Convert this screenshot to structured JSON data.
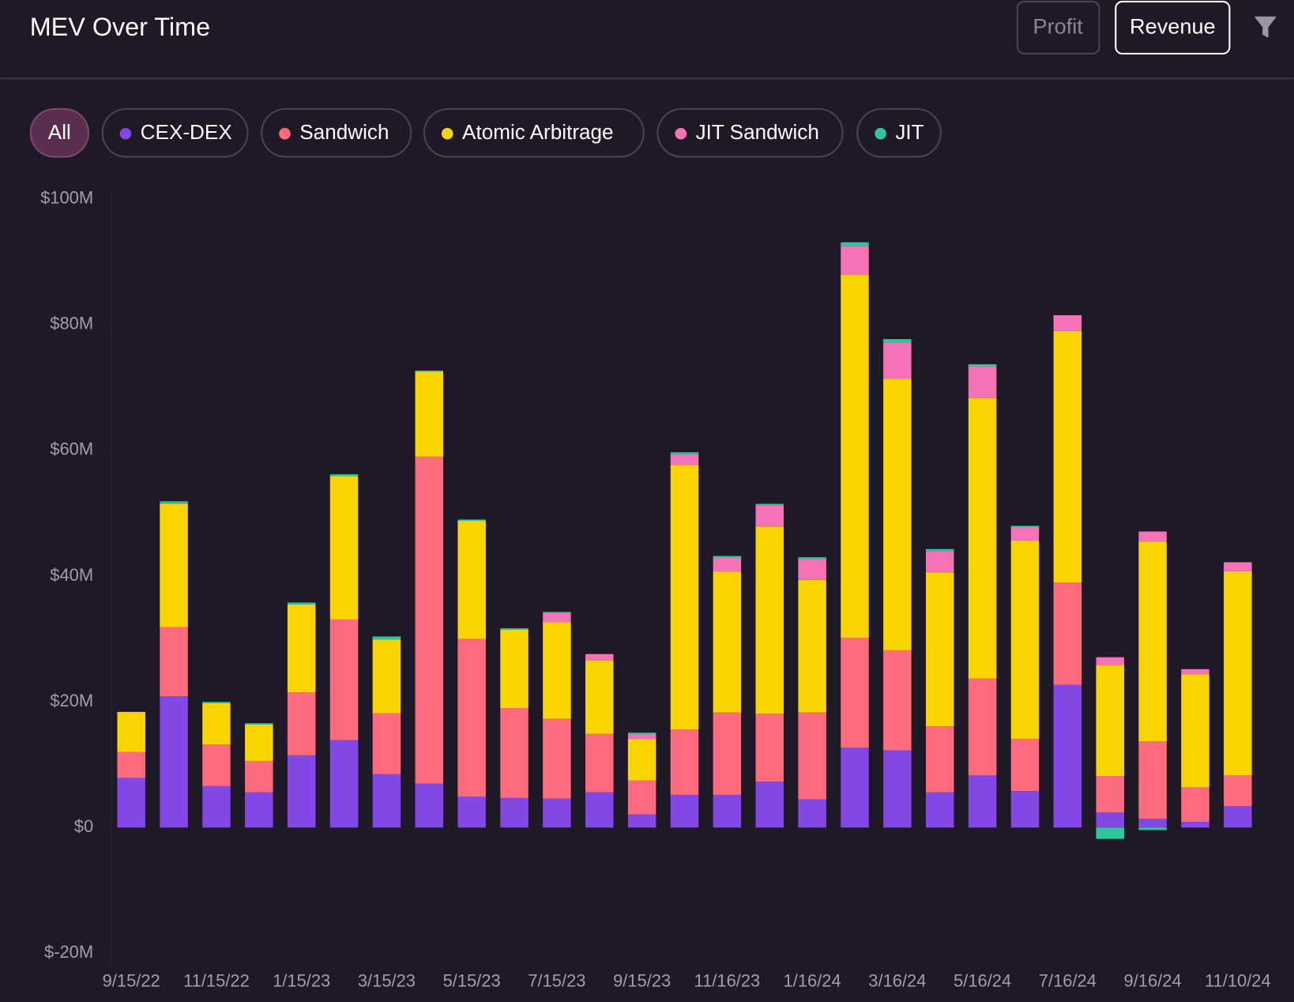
{
  "header": {
    "title": "MEV Over Time",
    "buttons": [
      "Profit",
      "Revenue"
    ]
  },
  "filters": {
    "all": "All"
  },
  "chart_data": {
    "type": "bar",
    "stacked": true,
    "categories": [
      "9/15/22",
      null,
      "11/15/22",
      null,
      "1/15/23",
      null,
      "3/15/23",
      null,
      "5/15/23",
      null,
      "7/15/23",
      null,
      "9/15/23",
      null,
      "11/16/23",
      null,
      "1/16/24",
      null,
      "3/16/24",
      null,
      "5/16/24",
      null,
      "7/16/24",
      null,
      "9/16/24",
      null,
      "11/10/24"
    ],
    "series": [
      {
        "name": "CEX-DEX",
        "color": "#8247e5",
        "values": [
          7.9,
          20.9,
          6.6,
          5.6,
          11.5,
          13.9,
          8.5,
          7.0,
          4.9,
          4.7,
          4.6,
          5.6,
          2.1,
          5.2,
          5.2,
          7.3,
          4.5,
          12.7,
          12.3,
          5.6,
          8.3,
          5.8,
          22.7,
          2.4,
          1.4,
          0.9,
          3.4
        ]
      },
      {
        "name": "Sandwich",
        "color": "#ff6b7e",
        "values": [
          4.1,
          11.0,
          6.6,
          5.0,
          10.0,
          19.2,
          9.7,
          52.0,
          25.1,
          14.3,
          12.7,
          9.3,
          5.4,
          10.4,
          13.1,
          10.8,
          13.8,
          17.5,
          15.9,
          10.5,
          15.4,
          8.3,
          16.3,
          5.8,
          12.3,
          5.5,
          4.9
        ]
      },
      {
        "name": "Atomic Arbitrage",
        "color": "#fad400",
        "values": [
          6.4,
          19.6,
          6.6,
          5.8,
          14.0,
          22.8,
          11.7,
          13.5,
          18.8,
          12.5,
          15.4,
          11.7,
          6.6,
          42.1,
          22.4,
          29.8,
          21.1,
          57.7,
          43.2,
          24.5,
          44.6,
          31.5,
          40.0,
          17.6,
          31.8,
          18.0,
          32.5
        ]
      },
      {
        "name": "JIT Sandwich",
        "color": "#f472b6",
        "values": [
          0,
          0.1,
          0,
          0,
          0,
          0,
          0,
          0,
          0,
          0,
          1.4,
          1.0,
          0.8,
          1.7,
          2.2,
          3.3,
          3.3,
          4.6,
          5.8,
          3.4,
          5.1,
          2.2,
          2.5,
          1.3,
          1.6,
          0.8,
          1.4
        ]
      },
      {
        "name": "JIT",
        "color": "#2ec79b",
        "values": [
          0,
          0.3,
          0.2,
          0.2,
          0.3,
          0.3,
          0.5,
          0.2,
          0.2,
          0.2,
          0.2,
          0,
          0.2,
          0.3,
          0.3,
          0.3,
          0.3,
          0.6,
          0.5,
          0.3,
          0.3,
          0.2,
          0,
          -1.8,
          -0.4,
          0,
          0
        ]
      }
    ],
    "ylim": [
      -20,
      100
    ],
    "yticks": [
      {
        "value": -20,
        "label": "$-20M"
      },
      {
        "value": 0,
        "label": "$0"
      },
      {
        "value": 20,
        "label": "$20M"
      },
      {
        "value": 40,
        "label": "$40M"
      },
      {
        "value": 60,
        "label": "$60M"
      },
      {
        "value": 80,
        "label": "$80M"
      },
      {
        "value": 100,
        "label": "$100M"
      }
    ]
  }
}
